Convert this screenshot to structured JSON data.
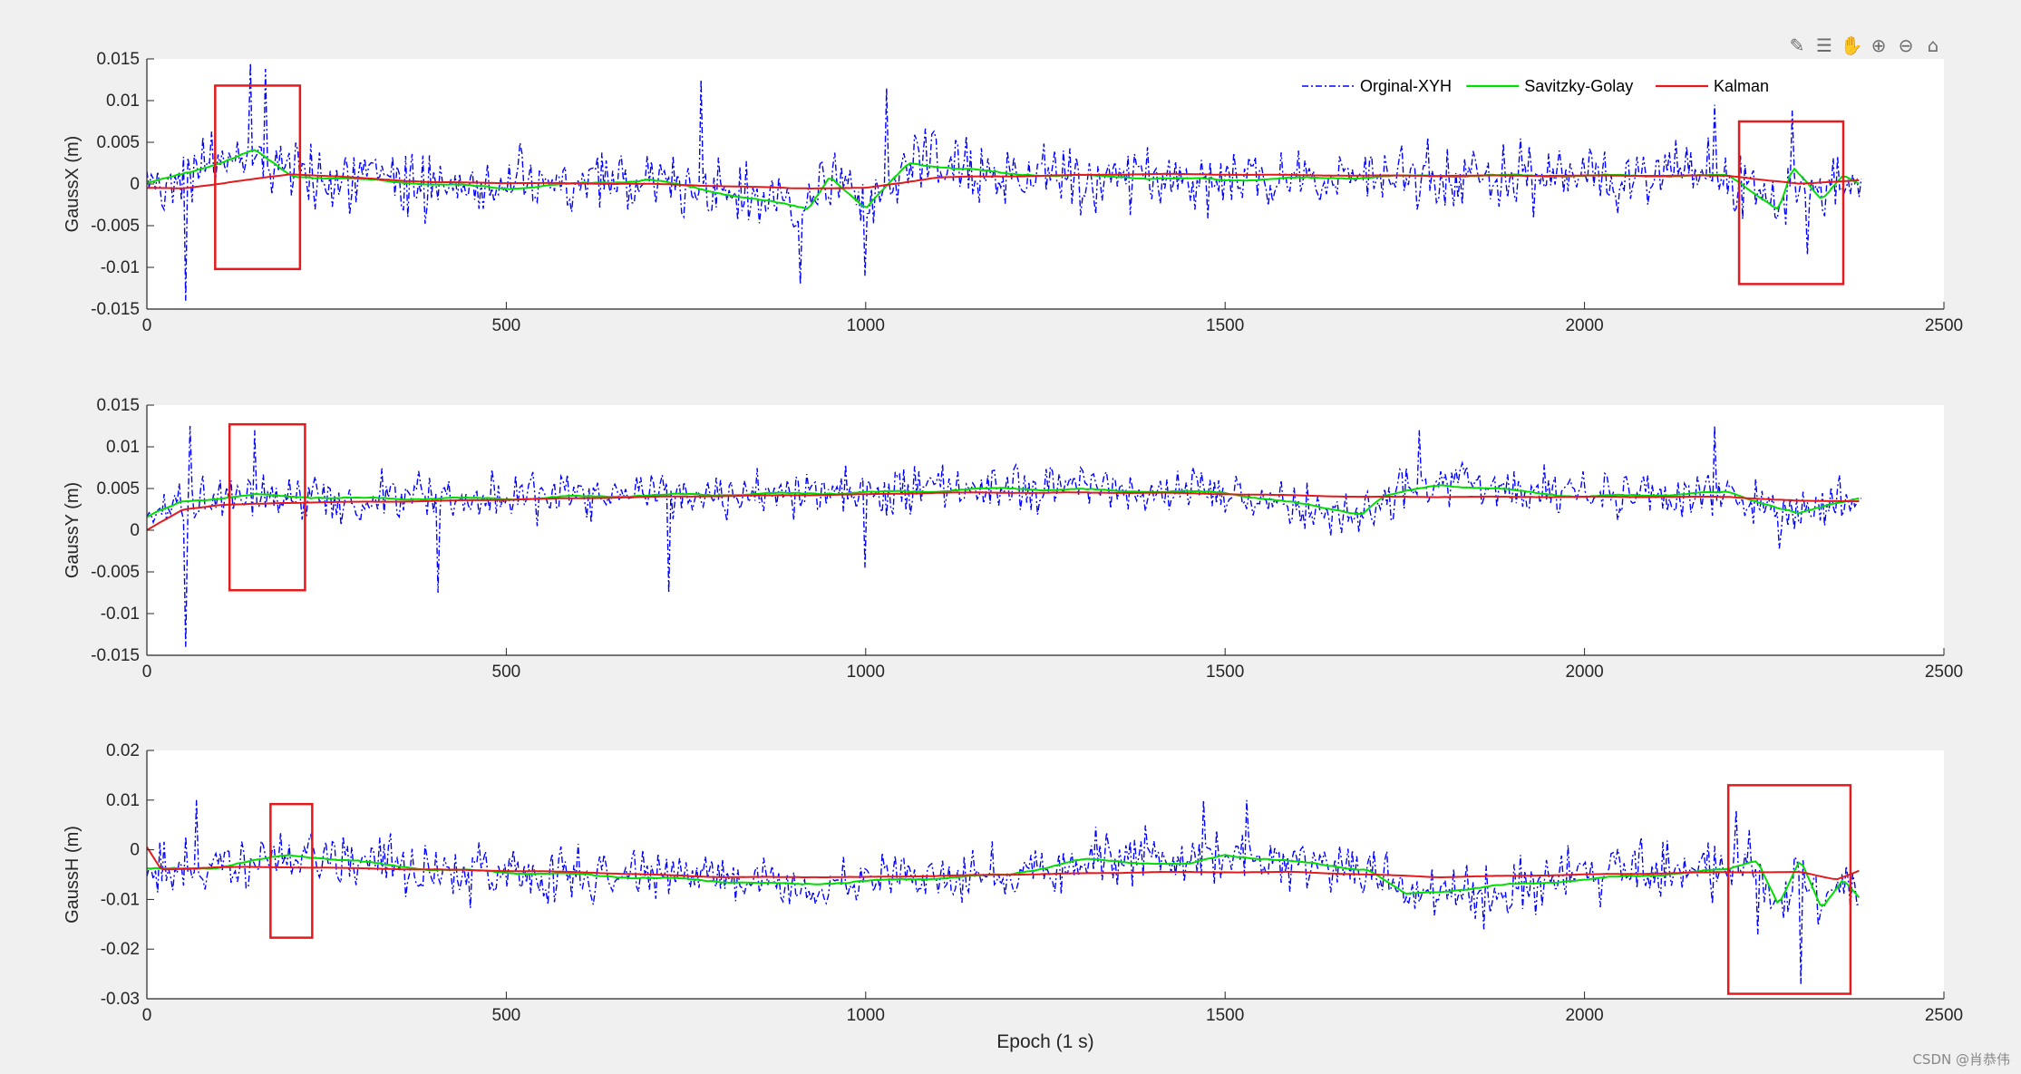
{
  "toolbar": {
    "icons": [
      "brush-icon",
      "data-tips-icon",
      "pan-hand-icon",
      "zoom-in-icon",
      "zoom-out-icon",
      "home-icon"
    ],
    "glyphs": [
      "✎",
      "☰",
      "✋",
      "⊕",
      "⊖",
      "⌂"
    ]
  },
  "watermark": "CSDN @肖恭伟",
  "chart_data": [
    {
      "type": "line",
      "title": "",
      "xlabel": "",
      "ylabel": "GaussX (m)",
      "xlim": [
        0,
        2500
      ],
      "ylim": [
        -0.015,
        0.015
      ],
      "xticks": [
        0,
        500,
        1000,
        1500,
        2000,
        2500
      ],
      "yticks": [
        -0.015,
        -0.01,
        -0.005,
        0,
        0.005,
        0.01,
        0.015
      ],
      "ytick_labels": [
        "-0.015",
        "-0.01",
        "-0.005",
        "0",
        "0.005",
        "0.01",
        "0.015"
      ],
      "grid": false,
      "legend": {
        "location": "top-right",
        "entries": [
          "Orginal-XYH",
          "Savitzky-Golay",
          "Kalman"
        ]
      },
      "series": [
        {
          "name": "Orginal-XYH",
          "color": "#0000ff",
          "style": "dashdot",
          "n_points": 2385,
          "mean": 0.0005,
          "noise_amplitude": 0.004,
          "peaks": [
            [
              145,
              0.0145
            ],
            [
              165,
              0.0138
            ],
            [
              770,
              0.0125
            ],
            [
              1030,
              0.0115
            ],
            [
              2180,
              0.0095
            ],
            [
              2290,
              0.0088
            ]
          ],
          "troughs": [
            [
              55,
              -0.014
            ],
            [
              910,
              -0.012
            ],
            [
              1000,
              -0.011
            ],
            [
              2310,
              -0.0085
            ]
          ]
        },
        {
          "name": "Savitzky-Golay",
          "color": "#00dd00",
          "style": "solid",
          "x": [
            0,
            100,
            150,
            200,
            300,
            500,
            700,
            920,
            950,
            1000,
            1060,
            1200,
            1500,
            1800,
            2000,
            2200,
            2270,
            2290,
            2330,
            2360,
            2385
          ],
          "y": [
            0.0,
            0.0025,
            0.004,
            0.001,
            0.0005,
            -0.0005,
            0.0005,
            -0.003,
            0.001,
            -0.003,
            0.0025,
            0.0012,
            0.0005,
            0.001,
            0.001,
            0.001,
            -0.003,
            0.002,
            -0.002,
            0.001,
            0.0
          ]
        },
        {
          "name": "Kalman",
          "color": "#e41a1c",
          "style": "solid",
          "x": [
            0,
            50,
            100,
            200,
            400,
            700,
            900,
            1000,
            1100,
            1400,
            1700,
            2000,
            2200,
            2300,
            2385
          ],
          "y": [
            -0.0005,
            -0.0005,
            0.0,
            0.0012,
            0.0002,
            0.0,
            -0.0005,
            -0.0005,
            0.0008,
            0.0012,
            0.001,
            0.001,
            0.001,
            0.0,
            0.0005
          ]
        }
      ],
      "annotations": [
        {
          "type": "rectangle",
          "color": "#e41a1c",
          "x": [
            95,
            213
          ],
          "y": [
            -0.0102,
            0.0118
          ]
        },
        {
          "type": "rectangle",
          "color": "#e41a1c",
          "x": [
            2215,
            2360
          ],
          "y": [
            -0.012,
            0.0075
          ]
        }
      ]
    },
    {
      "type": "line",
      "title": "",
      "xlabel": "",
      "ylabel": "GaussY (m)",
      "xlim": [
        0,
        2500
      ],
      "ylim": [
        -0.015,
        0.015
      ],
      "xticks": [
        0,
        500,
        1000,
        1500,
        2000,
        2500
      ],
      "yticks": [
        -0.015,
        -0.01,
        -0.005,
        0,
        0.005,
        0.01,
        0.015
      ],
      "ytick_labels": [
        "-0.015",
        "-0.01",
        "-0.005",
        "0",
        "0.005",
        "0.01",
        "0.015"
      ],
      "grid": false,
      "series": [
        {
          "name": "Orginal-XYH",
          "color": "#0000ff",
          "style": "dashdot",
          "n_points": 2385,
          "mean": 0.0038,
          "noise_amplitude": 0.003,
          "peaks": [
            [
              60,
              0.0125
            ],
            [
              150,
              0.012
            ],
            [
              1770,
              0.012
            ],
            [
              2180,
              0.0125
            ]
          ],
          "troughs": [
            [
              55,
              -0.014
            ],
            [
              405,
              -0.0075
            ],
            [
              725,
              -0.0075
            ],
            [
              1000,
              -0.0045
            ],
            [
              2270,
              -0.0022
            ]
          ]
        },
        {
          "name": "Savitzky-Golay",
          "color": "#00dd00",
          "style": "solid",
          "x": [
            0,
            50,
            150,
            300,
            500,
            700,
            1000,
            1200,
            1500,
            1690,
            1720,
            1800,
            2000,
            2200,
            2300,
            2385
          ],
          "y": [
            0.0015,
            0.0035,
            0.0042,
            0.0038,
            0.0038,
            0.0042,
            0.0045,
            0.005,
            0.0045,
            0.002,
            0.004,
            0.0055,
            0.004,
            0.0045,
            0.002,
            0.004
          ]
        },
        {
          "name": "Kalman",
          "color": "#e41a1c",
          "style": "solid",
          "x": [
            0,
            50,
            100,
            200,
            400,
            700,
            1000,
            1100,
            1400,
            1700,
            2000,
            2200,
            2300,
            2385
          ],
          "y": [
            0.0,
            0.0025,
            0.003,
            0.0033,
            0.0035,
            0.004,
            0.0043,
            0.0045,
            0.0045,
            0.004,
            0.004,
            0.004,
            0.0035,
            0.0035
          ]
        }
      ],
      "annotations": [
        {
          "type": "rectangle",
          "color": "#e41a1c",
          "x": [
            115,
            220
          ],
          "y": [
            -0.0072,
            0.0127
          ]
        }
      ]
    },
    {
      "type": "line",
      "title": "",
      "xlabel": "Epoch (1 s)",
      "ylabel": "GaussH (m)",
      "xlim": [
        0,
        2500
      ],
      "ylim": [
        -0.03,
        0.02
      ],
      "xticks": [
        0,
        500,
        1000,
        1500,
        2000,
        2500
      ],
      "yticks": [
        -0.03,
        -0.02,
        -0.01,
        0,
        0.01,
        0.02
      ],
      "ytick_labels": [
        "-0.03",
        "-0.02",
        "-0.01",
        "0",
        "0.01",
        "0.02"
      ],
      "grid": false,
      "series": [
        {
          "name": "Orginal-XYH",
          "color": "#0000ff",
          "style": "dashdot",
          "n_points": 2385,
          "mean": -0.004,
          "noise_amplitude": 0.006,
          "peaks": [
            [
              70,
              0.01
            ],
            [
              1470,
              0.01
            ],
            [
              1530,
              0.01
            ],
            [
              2210,
              0.008
            ],
            [
              2300,
              0.0075
            ]
          ],
          "troughs": [
            [
              2300,
              -0.027
            ],
            [
              2240,
              -0.017
            ],
            [
              1860,
              -0.016
            ]
          ]
        },
        {
          "name": "Savitzky-Golay",
          "color": "#00dd00",
          "style": "solid",
          "x": [
            0,
            100,
            200,
            400,
            600,
            900,
            1200,
            1300,
            1450,
            1500,
            1700,
            1750,
            1900,
            2100,
            2200,
            2240,
            2270,
            2300,
            2330,
            2360,
            2385
          ],
          "y": [
            -0.004,
            -0.0035,
            -0.001,
            -0.004,
            -0.005,
            -0.007,
            -0.005,
            -0.002,
            -0.003,
            -0.001,
            -0.004,
            -0.009,
            -0.007,
            -0.005,
            -0.004,
            -0.002,
            -0.011,
            -0.002,
            -0.012,
            -0.006,
            -0.01
          ]
        },
        {
          "name": "Kalman",
          "color": "#e41a1c",
          "style": "solid",
          "x": [
            0,
            20,
            100,
            200,
            400,
            600,
            800,
            1000,
            1200,
            1400,
            1600,
            1800,
            2000,
            2200,
            2300,
            2350,
            2385
          ],
          "y": [
            0.0005,
            -0.004,
            -0.0035,
            -0.0035,
            -0.004,
            -0.0045,
            -0.0055,
            -0.0055,
            -0.005,
            -0.0045,
            -0.0045,
            -0.0055,
            -0.005,
            -0.0045,
            -0.0045,
            -0.006,
            -0.004
          ]
        }
      ],
      "annotations": [
        {
          "type": "rectangle",
          "color": "#e41a1c",
          "x": [
            172,
            230
          ],
          "y": [
            -0.0177,
            0.0092
          ]
        },
        {
          "type": "rectangle",
          "color": "#e41a1c",
          "x": [
            2200,
            2370
          ],
          "y": [
            -0.029,
            0.013
          ]
        }
      ]
    }
  ]
}
